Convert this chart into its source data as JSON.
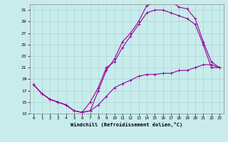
{
  "xlabel": "Windchill (Refroidissement éolien,°C)",
  "bg_color": "#c8ecec",
  "grid_color": "#aad4d4",
  "line_color": "#990099",
  "marker": "+",
  "xlim": [
    -0.5,
    23.5
  ],
  "ylim": [
    13,
    32
  ],
  "xticks": [
    0,
    1,
    2,
    3,
    4,
    5,
    6,
    7,
    8,
    9,
    10,
    11,
    12,
    13,
    14,
    15,
    16,
    17,
    18,
    19,
    20,
    21,
    22,
    23
  ],
  "yticks": [
    13,
    15,
    17,
    19,
    21,
    23,
    25,
    27,
    29,
    31
  ],
  "curve1_x": [
    0,
    1,
    2,
    3,
    4,
    5,
    6,
    7,
    8,
    9,
    10,
    11,
    12,
    13,
    14,
    15,
    16,
    17,
    18,
    19,
    20,
    21,
    22,
    23
  ],
  "curve1_y": [
    18.0,
    16.5,
    15.5,
    15.0,
    14.5,
    13.5,
    13.2,
    13.5,
    17.0,
    20.5,
    22.5,
    25.5,
    27.0,
    29.0,
    31.8,
    32.2,
    32.2,
    32.5,
    31.5,
    31.2,
    29.5,
    25.5,
    22.0,
    21.0
  ],
  "curve2_x": [
    0,
    1,
    2,
    3,
    4,
    5,
    6,
    7,
    8,
    9,
    10,
    11,
    12,
    13,
    14,
    15,
    16,
    17,
    18,
    19,
    20,
    21,
    22,
    23
  ],
  "curve2_y": [
    18.0,
    16.5,
    15.5,
    15.0,
    14.5,
    13.5,
    13.2,
    15.0,
    17.5,
    21.0,
    22.0,
    24.5,
    26.5,
    28.5,
    30.5,
    31.0,
    31.0,
    30.5,
    30.0,
    29.5,
    28.5,
    25.0,
    21.0,
    21.0
  ],
  "curve3_x": [
    0,
    1,
    2,
    3,
    4,
    5,
    6,
    7,
    8,
    9,
    10,
    11,
    12,
    13,
    14,
    15,
    16,
    17,
    18,
    19,
    20,
    21,
    22,
    23
  ],
  "curve3_y": [
    18.0,
    16.5,
    15.5,
    15.0,
    14.5,
    13.5,
    13.2,
    13.5,
    14.5,
    16.0,
    17.5,
    18.2,
    18.8,
    19.5,
    19.8,
    19.8,
    20.0,
    20.0,
    20.5,
    20.5,
    21.0,
    21.5,
    21.5,
    21.0
  ]
}
